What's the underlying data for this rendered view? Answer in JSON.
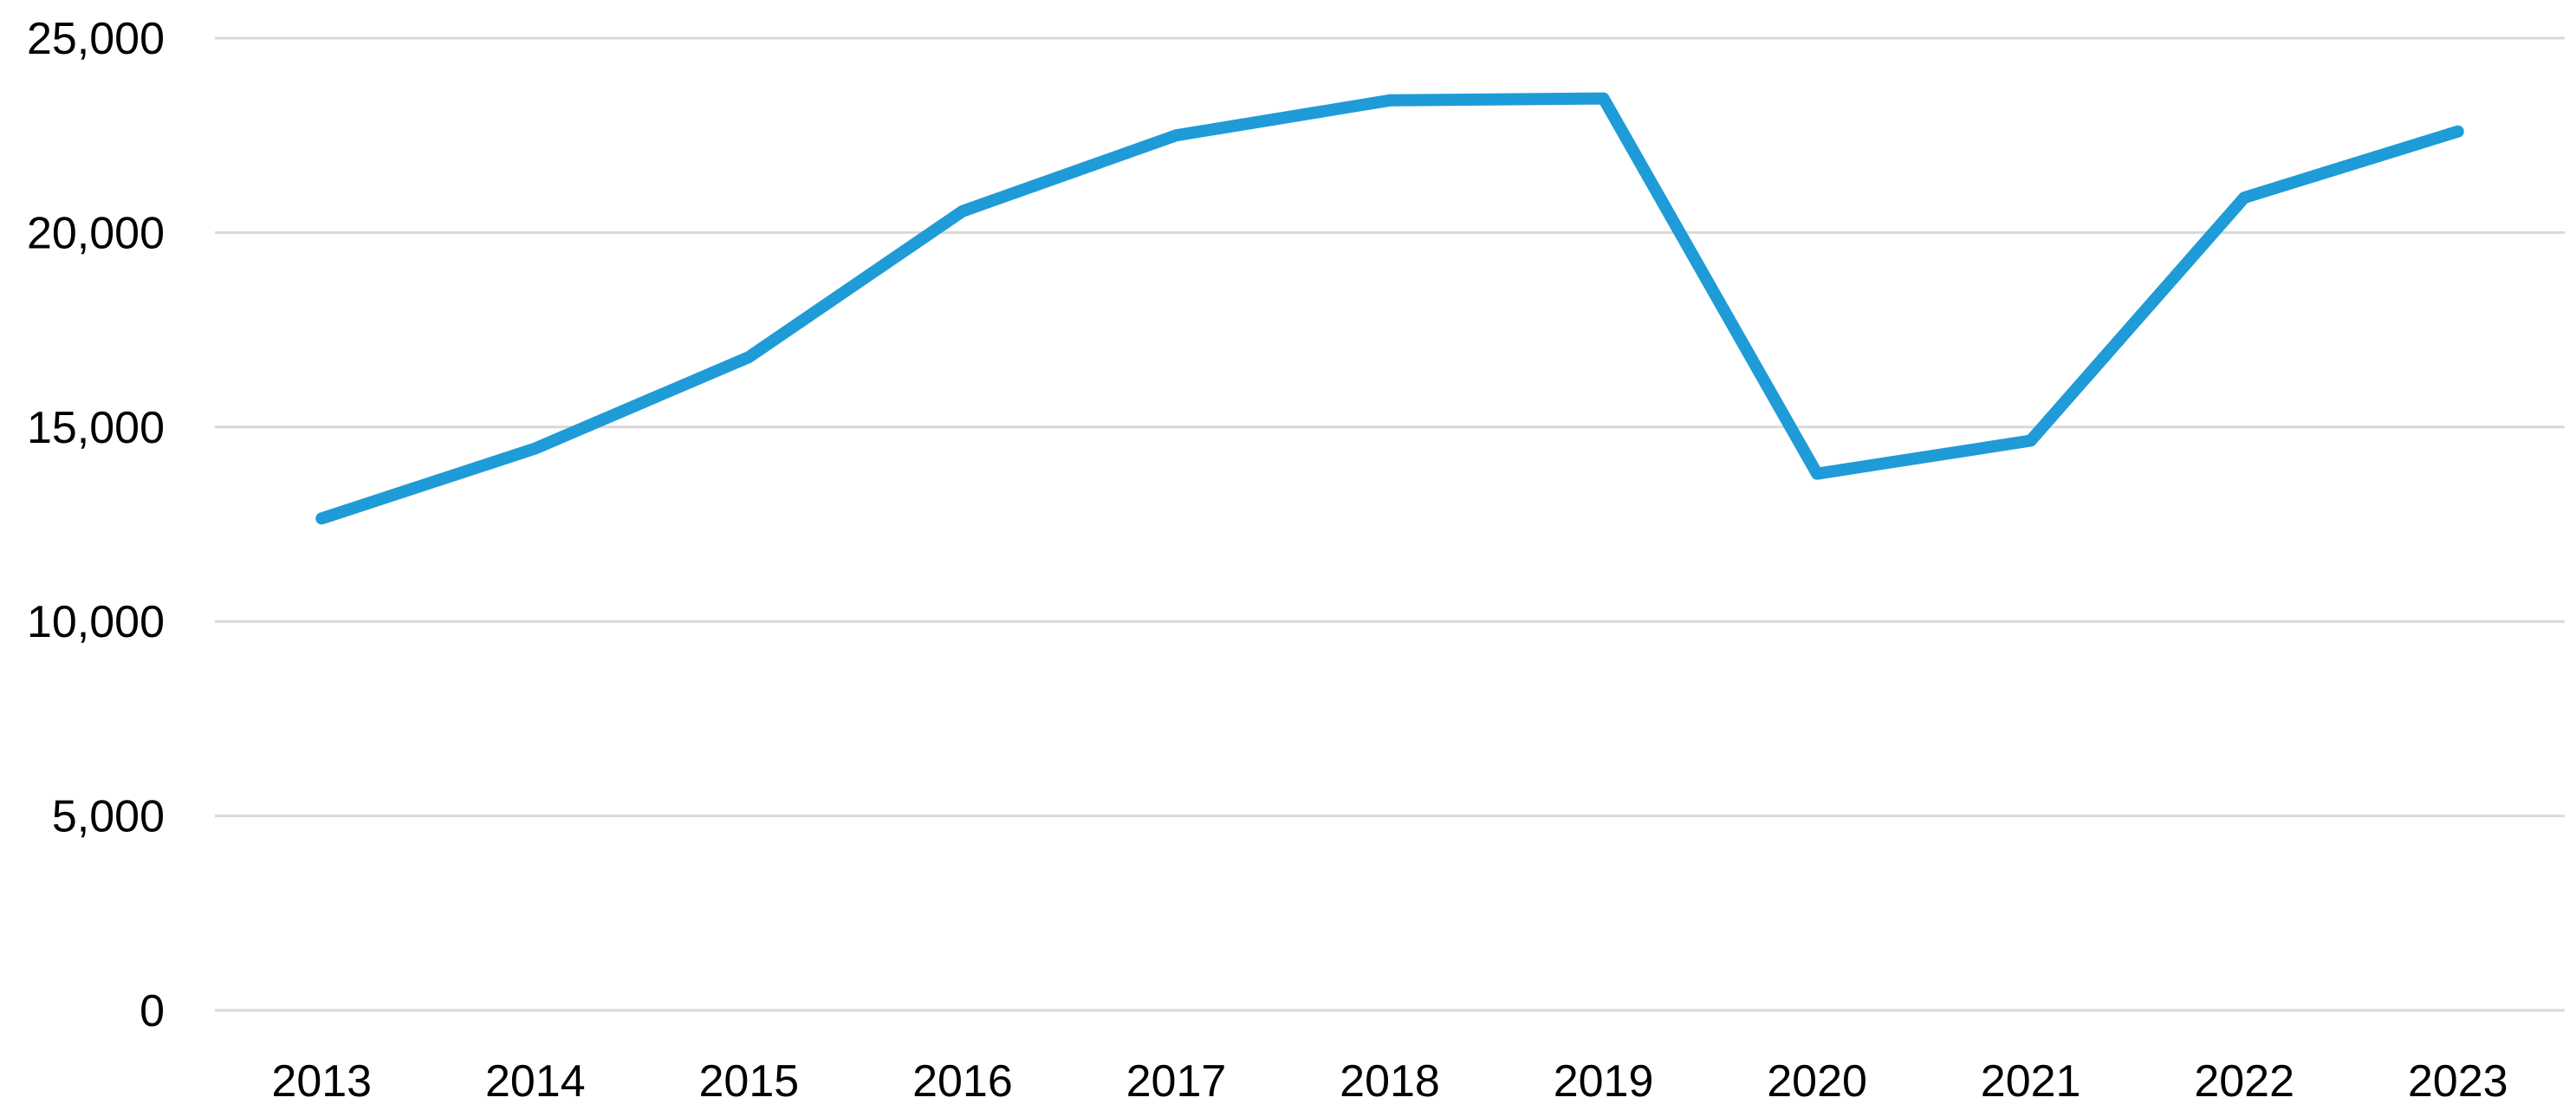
{
  "chart_data": {
    "type": "line",
    "title": "",
    "xlabel": "",
    "ylabel": "",
    "categories": [
      "2013",
      "2014",
      "2015",
      "2016",
      "2017",
      "2018",
      "2019",
      "2020",
      "2021",
      "2022",
      "2023"
    ],
    "series": [
      {
        "values": [
          12650,
          14450,
          16800,
          20550,
          22500,
          23400,
          23450,
          13800,
          14650,
          20900,
          22600
        ]
      }
    ],
    "ylim": [
      0,
      25000
    ],
    "yticks": [
      0,
      5000,
      10000,
      15000,
      20000,
      25000
    ],
    "ytick_labels": [
      "0",
      "5,000",
      "10,000",
      "15,000",
      "20,000",
      "25,000"
    ],
    "grid": true,
    "legend": "none",
    "line_color": "#1f9bd7",
    "grid_color": "#d9d9d9"
  }
}
